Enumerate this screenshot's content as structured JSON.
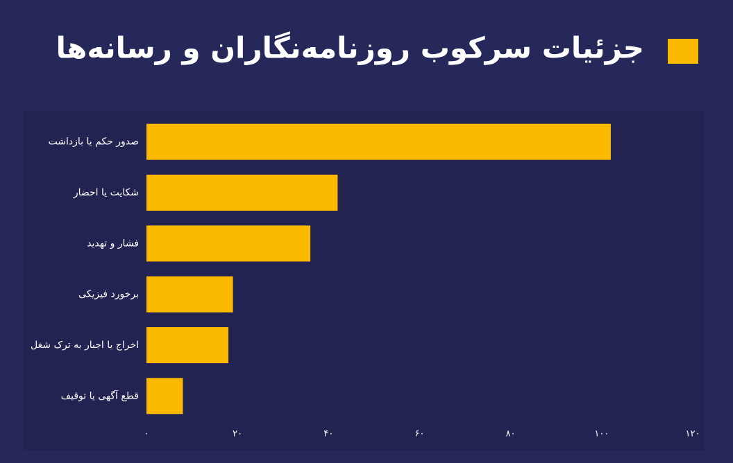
{
  "chart_data": {
    "type": "barh",
    "title": "جزئیات سرکوب روزنامه‌نگاران و رسانه‌ها",
    "categories": [
      "صدور حکم یا بازداشت",
      "شکایت یا احضار",
      "فشار و تهدید",
      "برخورد فیزیکی",
      "اخراج یا اجبار به ترک شغل",
      "قطع آگهی یا توقیف"
    ],
    "values": [
      102,
      42,
      36,
      19,
      18,
      8
    ],
    "color": "#fbb900",
    "xlim": [
      0,
      120
    ],
    "xticks": [
      {
        "value": 0,
        "label": "۰"
      },
      {
        "value": 20,
        "label": "۲۰"
      },
      {
        "value": 40,
        "label": "۴۰"
      },
      {
        "value": 60,
        "label": "۶۰"
      },
      {
        "value": 80,
        "label": "۸۰"
      },
      {
        "value": 100,
        "label": "۱۰۰"
      },
      {
        "value": 120,
        "label": "۱۲۰"
      }
    ],
    "grid": false
  }
}
